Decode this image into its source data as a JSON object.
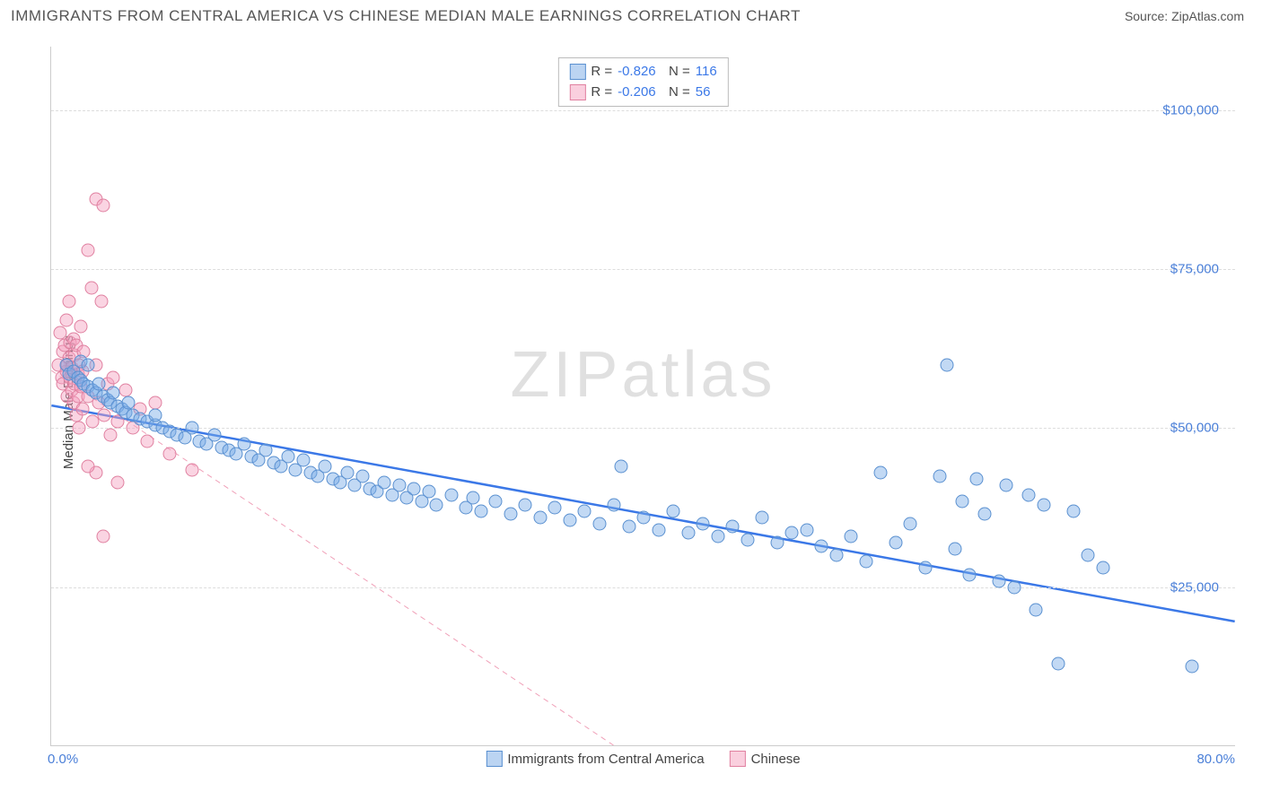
{
  "header": {
    "title": "IMMIGRANTS FROM CENTRAL AMERICA VS CHINESE MEDIAN MALE EARNINGS CORRELATION CHART",
    "source": "Source: ZipAtlas.com"
  },
  "chart": {
    "type": "scatter",
    "ylabel": "Median Male Earnings",
    "watermark": "ZIPatlas",
    "background_color": "#ffffff",
    "grid_color": "#dddddd",
    "axis_color": "#cccccc",
    "xlim": [
      0,
      80
    ],
    "ylim": [
      0,
      110000
    ],
    "xtick_labels": {
      "min": "0.0%",
      "max": "80.0%"
    },
    "ytick_values": [
      25000,
      50000,
      75000,
      100000
    ],
    "ytick_labels": [
      "$25,000",
      "$50,000",
      "$75,000",
      "$100,000"
    ],
    "point_radius": 7.5,
    "series": {
      "blue": {
        "label": "Immigrants from Central America",
        "fill_color": "rgba(120,170,230,0.45)",
        "stroke_color": "#5a90d0",
        "correlation_R": "-0.826",
        "correlation_N": "116",
        "trend": {
          "x1": 0,
          "y1": 53500,
          "x2": 80,
          "y2": 19500,
          "color": "#3b78e7",
          "width": 2.5,
          "dash": "none"
        },
        "points": [
          [
            1.0,
            60000
          ],
          [
            1.2,
            58500
          ],
          [
            1.5,
            59000
          ],
          [
            1.8,
            58000
          ],
          [
            2.0,
            57500
          ],
          [
            2.0,
            60500
          ],
          [
            2.2,
            57000
          ],
          [
            2.5,
            56500
          ],
          [
            2.5,
            60000
          ],
          [
            2.8,
            56000
          ],
          [
            3.0,
            55500
          ],
          [
            3.2,
            57000
          ],
          [
            3.5,
            55000
          ],
          [
            3.8,
            54500
          ],
          [
            4.0,
            54000
          ],
          [
            4.2,
            55500
          ],
          [
            4.5,
            53500
          ],
          [
            4.8,
            53000
          ],
          [
            5.0,
            52500
          ],
          [
            5.2,
            54000
          ],
          [
            5.5,
            52000
          ],
          [
            6.0,
            51500
          ],
          [
            6.5,
            51000
          ],
          [
            7.0,
            50500
          ],
          [
            7.0,
            52000
          ],
          [
            7.5,
            50000
          ],
          [
            8.0,
            49500
          ],
          [
            8.5,
            49000
          ],
          [
            9.0,
            48500
          ],
          [
            9.5,
            50000
          ],
          [
            10.0,
            48000
          ],
          [
            10.5,
            47500
          ],
          [
            11.0,
            49000
          ],
          [
            11.5,
            47000
          ],
          [
            12.0,
            46500
          ],
          [
            12.5,
            46000
          ],
          [
            13.0,
            47500
          ],
          [
            13.5,
            45500
          ],
          [
            14.0,
            45000
          ],
          [
            14.5,
            46500
          ],
          [
            15.0,
            44500
          ],
          [
            15.5,
            44000
          ],
          [
            16.0,
            45500
          ],
          [
            16.5,
            43500
          ],
          [
            17.0,
            45000
          ],
          [
            17.5,
            43000
          ],
          [
            18.0,
            42500
          ],
          [
            18.5,
            44000
          ],
          [
            19.0,
            42000
          ],
          [
            19.5,
            41500
          ],
          [
            20.0,
            43000
          ],
          [
            20.5,
            41000
          ],
          [
            21.0,
            42500
          ],
          [
            21.5,
            40500
          ],
          [
            22.0,
            40000
          ],
          [
            22.5,
            41500
          ],
          [
            23.0,
            39500
          ],
          [
            23.5,
            41000
          ],
          [
            24.0,
            39000
          ],
          [
            24.5,
            40500
          ],
          [
            25.0,
            38500
          ],
          [
            25.5,
            40000
          ],
          [
            26.0,
            38000
          ],
          [
            27.0,
            39500
          ],
          [
            28.0,
            37500
          ],
          [
            28.5,
            39000
          ],
          [
            29.0,
            37000
          ],
          [
            30.0,
            38500
          ],
          [
            31.0,
            36500
          ],
          [
            32.0,
            38000
          ],
          [
            33.0,
            36000
          ],
          [
            34.0,
            37500
          ],
          [
            35.0,
            35500
          ],
          [
            36.0,
            37000
          ],
          [
            37.0,
            35000
          ],
          [
            38.0,
            38000
          ],
          [
            38.5,
            44000
          ],
          [
            39.0,
            34500
          ],
          [
            40.0,
            36000
          ],
          [
            41.0,
            34000
          ],
          [
            42.0,
            37000
          ],
          [
            43.0,
            33500
          ],
          [
            44.0,
            35000
          ],
          [
            45.0,
            33000
          ],
          [
            46.0,
            34500
          ],
          [
            47.0,
            32500
          ],
          [
            48.0,
            36000
          ],
          [
            49.0,
            32000
          ],
          [
            50.0,
            33500
          ],
          [
            51.0,
            34000
          ],
          [
            52.0,
            31500
          ],
          [
            53.0,
            30000
          ],
          [
            54.0,
            33000
          ],
          [
            55.0,
            29000
          ],
          [
            56.0,
            43000
          ],
          [
            57.0,
            32000
          ],
          [
            58.0,
            35000
          ],
          [
            59.0,
            28000
          ],
          [
            60.0,
            42500
          ],
          [
            60.5,
            60000
          ],
          [
            61.0,
            31000
          ],
          [
            61.5,
            38500
          ],
          [
            62.0,
            27000
          ],
          [
            62.5,
            42000
          ],
          [
            63.0,
            36500
          ],
          [
            64.0,
            26000
          ],
          [
            64.5,
            41000
          ],
          [
            65.0,
            25000
          ],
          [
            66.0,
            39500
          ],
          [
            66.5,
            21500
          ],
          [
            67.0,
            38000
          ],
          [
            68.0,
            13000
          ],
          [
            69.0,
            37000
          ],
          [
            77.0,
            12500
          ],
          [
            70.0,
            30000
          ],
          [
            71.0,
            28000
          ]
        ]
      },
      "pink": {
        "label": "Chinese",
        "fill_color": "rgba(245,160,190,0.45)",
        "stroke_color": "#e080a0",
        "correlation_R": "-0.206",
        "correlation_N": "56",
        "trend": {
          "x1": 0,
          "y1": 59000,
          "x2": 38,
          "y2": 0,
          "color": "#f0a0b8",
          "width": 1,
          "dash": "6,5"
        },
        "points": [
          [
            0.5,
            60000
          ],
          [
            0.6,
            65000
          ],
          [
            0.7,
            58000
          ],
          [
            0.8,
            62000
          ],
          [
            0.8,
            57000
          ],
          [
            0.9,
            63000
          ],
          [
            1.0,
            59000
          ],
          [
            1.0,
            67000
          ],
          [
            1.1,
            60000
          ],
          [
            1.1,
            55000
          ],
          [
            1.2,
            61000
          ],
          [
            1.2,
            70000
          ],
          [
            1.3,
            58000
          ],
          [
            1.3,
            63500
          ],
          [
            1.4,
            56000
          ],
          [
            1.4,
            59500
          ],
          [
            1.5,
            64000
          ],
          [
            1.5,
            54000
          ],
          [
            1.6,
            61500
          ],
          [
            1.6,
            57000
          ],
          [
            1.7,
            52000
          ],
          [
            1.7,
            63000
          ],
          [
            1.8,
            58500
          ],
          [
            1.8,
            55000
          ],
          [
            1.9,
            60000
          ],
          [
            1.9,
            50000
          ],
          [
            2.0,
            66000
          ],
          [
            2.0,
            56500
          ],
          [
            2.1,
            59000
          ],
          [
            2.1,
            53000
          ],
          [
            2.2,
            62000
          ],
          [
            2.5,
            78000
          ],
          [
            2.5,
            55000
          ],
          [
            2.7,
            72000
          ],
          [
            2.8,
            51000
          ],
          [
            3.0,
            60000
          ],
          [
            3.0,
            86000
          ],
          [
            3.2,
            54000
          ],
          [
            3.4,
            70000
          ],
          [
            3.5,
            85000
          ],
          [
            3.6,
            52000
          ],
          [
            3.8,
            57000
          ],
          [
            4.0,
            49000
          ],
          [
            4.2,
            58000
          ],
          [
            4.5,
            51000
          ],
          [
            5.0,
            56000
          ],
          [
            5.5,
            50000
          ],
          [
            6.0,
            53000
          ],
          [
            6.5,
            48000
          ],
          [
            7.0,
            54000
          ],
          [
            8.0,
            46000
          ],
          [
            3.0,
            43000
          ],
          [
            4.5,
            41500
          ],
          [
            2.5,
            44000
          ],
          [
            9.5,
            43500
          ],
          [
            3.5,
            33000
          ]
        ]
      }
    }
  }
}
